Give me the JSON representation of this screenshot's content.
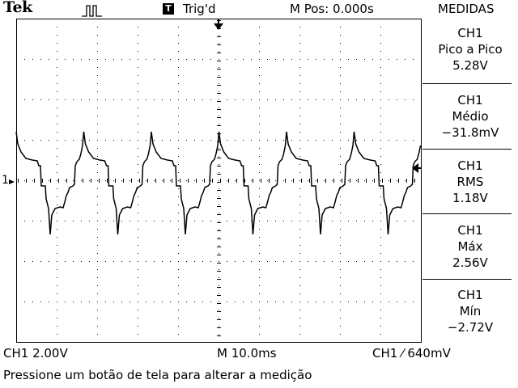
{
  "header": {
    "brand": "Tek",
    "trigger_mode_icon": "pulse-icon",
    "trigger_status_badge": "T",
    "trigger_status": "Trig'd",
    "position": "M Pos: 0.000s",
    "menu_title": "MEDIDAS"
  },
  "measurements": [
    {
      "channel": "CH1",
      "type": "Pico a Pico",
      "value": "5.28V"
    },
    {
      "channel": "CH1",
      "type": "Médio",
      "value": "−31.8mV"
    },
    {
      "channel": "CH1",
      "type": "RMS",
      "value": "1.18V"
    },
    {
      "channel": "CH1",
      "type": "Máx",
      "value": "2.56V"
    },
    {
      "channel": "CH1",
      "type": "Mín",
      "value": "−2.72V"
    }
  ],
  "markers": {
    "channel_ground": "1"
  },
  "footer": {
    "ch_scale": "CH1  2.00V",
    "timebase": "M 10.0ms",
    "trigger": "CH1 ⁄ 640mV",
    "hint": "Pressione um botão de tela para alterar a medição"
  },
  "colors": {
    "trace": "#000000",
    "background": "#ffffff"
  }
}
